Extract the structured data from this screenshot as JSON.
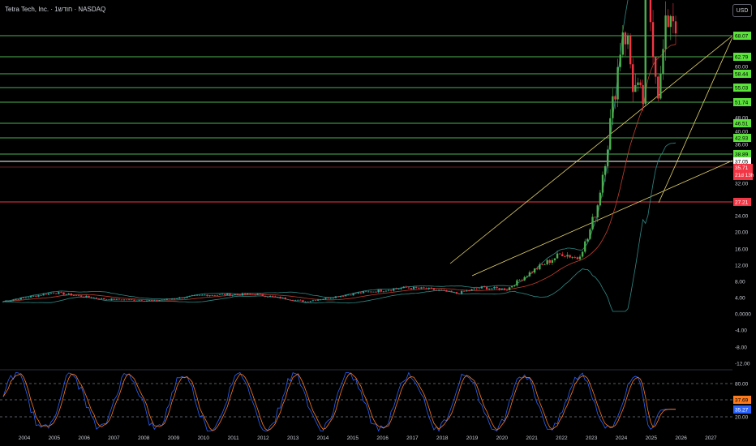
{
  "header": {
    "title": "Tetra Tech, Inc. · 1חודש · NASDAQ",
    "currency_button": "USD"
  },
  "price_axis": {
    "ticks": [
      "60.00",
      "48.00",
      "40.00",
      "36.00",
      "32.00",
      "24.00",
      "20.00",
      "16.00",
      "12.00",
      "8.00",
      "4.00",
      "0.0000",
      "-4.00",
      "-8.00",
      "-12.00"
    ]
  },
  "price_tags": {
    "green": [
      "68.07",
      "62.79",
      "58.44",
      "55.03",
      "51.74",
      "46.51",
      "42.93",
      "38.89"
    ],
    "white": "37.05",
    "current_price": "35.71",
    "countdown": "21d 13h",
    "red": "27.21"
  },
  "stoch_axis": {
    "ticks": [
      "80.00",
      "20.00"
    ],
    "k_value": "37.69",
    "d_value": "35.27"
  },
  "time_axis": {
    "years": [
      "2004",
      "2005",
      "2006",
      "2007",
      "2008",
      "2009",
      "2010",
      "2011",
      "2012",
      "2013",
      "2014",
      "2015",
      "2016",
      "2017",
      "2018",
      "2019",
      "2020",
      "2021",
      "2022",
      "2023",
      "2024",
      "2025",
      "2026",
      "2027"
    ]
  },
  "colors": {
    "background": "#000000",
    "level_green": "#4caf50",
    "tag_green": "#5be33c",
    "level_red": "#f23645",
    "candle_up": "#26a69a",
    "candle_up_alt": "#4caf50",
    "candle_down": "#f23645",
    "channel_lines": "#e6d46a",
    "bollinger": "#2f8a85",
    "ma_line": "#c2402f",
    "stoch_k": "#2962ff",
    "stoch_d": "#ff7b1c"
  }
}
